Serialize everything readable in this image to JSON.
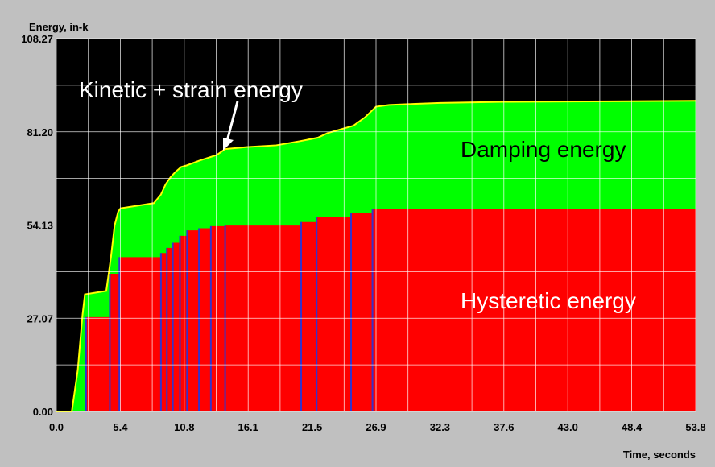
{
  "chart_data": {
    "type": "area",
    "title": "",
    "ylabel": "Energy, in-k",
    "xlabel": "Time, seconds",
    "xlim": [
      0.0,
      53.8
    ],
    "ylim": [
      0.0,
      108.27
    ],
    "x_ticks": [
      "0.0",
      "5.4",
      "10.8",
      "16.1",
      "21.5",
      "26.9",
      "32.3",
      "37.6",
      "43.0",
      "48.4",
      "53.8"
    ],
    "y_ticks": [
      "0.00",
      "27.07",
      "54.13",
      "81.20",
      "108.27"
    ],
    "grid": true,
    "background_color": "#000000",
    "colors": {
      "hysteretic": "#ff0000",
      "damping": "#00ff00",
      "kinetic_strain": "#ffff00",
      "hysteretic_transitions": "#3333cc",
      "grid": "#ffffff"
    },
    "annotations": {
      "kinetic_strain": "Kinetic + strain energy",
      "damping": "Damping energy",
      "hysteretic": "Hysteretic energy"
    },
    "series": [
      {
        "id": "hysteretic",
        "x": [
          0.0,
          2.5,
          2.5,
          4.5,
          4.5,
          5.3,
          5.3,
          8.8,
          8.8,
          9.3,
          9.3,
          9.8,
          9.8,
          10.4,
          10.4,
          11.0,
          11.0,
          12.0,
          12.0,
          13.0,
          13.0,
          14.2,
          14.2,
          20.6,
          20.6,
          21.9,
          21.9,
          24.8,
          24.8,
          26.6,
          26.6,
          53.8
        ],
        "y": [
          0.0,
          0.0,
          27.4,
          27.4,
          40.0,
          40.0,
          44.8,
          44.8,
          46.0,
          46.0,
          47.5,
          47.5,
          49.0,
          49.0,
          51.0,
          51.0,
          52.6,
          52.6,
          53.2,
          53.2,
          53.8,
          53.8,
          54.0,
          54.0,
          55.0,
          55.0,
          56.6,
          56.6,
          57.6,
          57.6,
          58.7,
          58.7
        ]
      },
      {
        "id": "total",
        "x": [
          0.0,
          1.3,
          1.8,
          2.2,
          2.4,
          4.2,
          4.6,
          4.9,
          5.2,
          5.4,
          8.2,
          8.8,
          9.2,
          9.6,
          10.0,
          10.5,
          11.0,
          12.0,
          13.5,
          14.2,
          16.0,
          18.5,
          20.5,
          22.0,
          22.8,
          24.0,
          25.0,
          26.0,
          26.9,
          28.0,
          30.0,
          32.3,
          37.6,
          43.0,
          48.4,
          53.8
        ],
        "y": [
          0.0,
          0.0,
          12.0,
          28.0,
          34.0,
          35.0,
          45.0,
          54.0,
          58.0,
          59.0,
          60.5,
          63.0,
          66.0,
          68.0,
          69.5,
          71.0,
          71.5,
          72.8,
          74.5,
          76.2,
          76.8,
          77.3,
          78.5,
          79.5,
          80.8,
          82.0,
          83.0,
          85.5,
          88.5,
          89.0,
          89.3,
          89.6,
          89.9,
          90.0,
          90.1,
          90.2
        ]
      }
    ]
  }
}
